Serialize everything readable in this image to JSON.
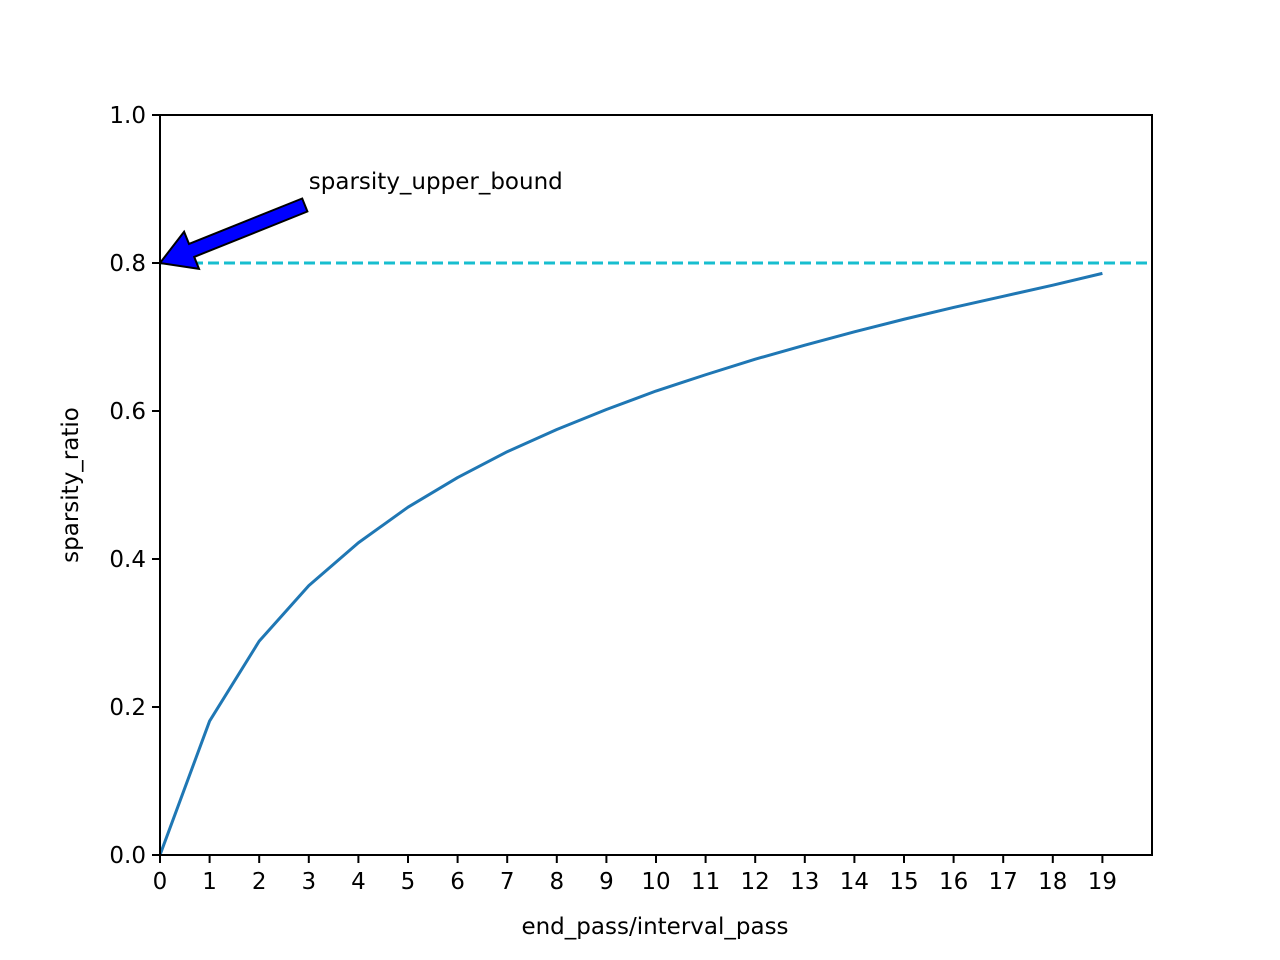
{
  "colors": {
    "series": "#1f77b4",
    "threshold": "#17becf",
    "arrow_fill": "#0000ff",
    "arrow_edge": "#000000",
    "axes": "#000000",
    "background": "#ffffff"
  },
  "chart_data": {
    "type": "line",
    "title": "",
    "xlabel": "end_pass/interval_pass",
    "ylabel": "sparsity_ratio",
    "xlim": [
      0,
      20
    ],
    "ylim": [
      0,
      1.0
    ],
    "grid": false,
    "legend": "none",
    "x_ticks": [
      0,
      1,
      2,
      3,
      4,
      5,
      6,
      7,
      8,
      9,
      10,
      11,
      12,
      13,
      14,
      15,
      16,
      17,
      18,
      19
    ],
    "x_tick_labels": [
      "0",
      "1",
      "2",
      "3",
      "4",
      "5",
      "6",
      "7",
      "8",
      "9",
      "10",
      "11",
      "12",
      "13",
      "14",
      "15",
      "16",
      "17",
      "18",
      "19"
    ],
    "y_ticks": [
      0.0,
      0.2,
      0.4,
      0.6,
      0.8,
      1.0
    ],
    "y_tick_labels": [
      "0.0",
      "0.2",
      "0.4",
      "0.6",
      "0.8",
      "1.0"
    ],
    "series": [
      {
        "x": [
          0,
          1,
          2,
          3,
          4,
          5,
          6,
          7,
          8,
          9,
          10,
          11,
          12,
          13,
          14,
          15,
          16,
          17,
          18,
          19
        ],
        "values": [
          0.0,
          0.181,
          0.289,
          0.364,
          0.422,
          0.47,
          0.51,
          0.545,
          0.575,
          0.602,
          0.627,
          0.649,
          0.67,
          0.689,
          0.707,
          0.724,
          0.74,
          0.755,
          0.77,
          0.786
        ],
        "style": "solid"
      }
    ],
    "hlines": [
      {
        "y": 0.8,
        "style": "dashed"
      }
    ],
    "annotations": [
      {
        "text": "sparsity_upper_bound",
        "xy": [
          0,
          0.8
        ],
        "xytext": [
          3,
          0.9
        ],
        "arrow": true
      }
    ]
  }
}
